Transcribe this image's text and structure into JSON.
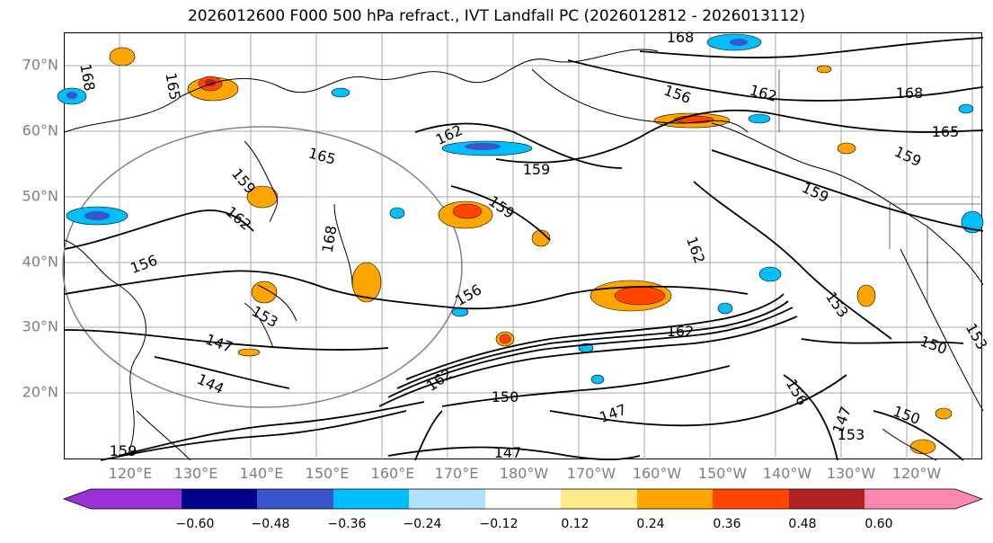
{
  "title": "2026012600 F000 500 hPa refract., IVT Landfall PC (2026012812 - 2026013112)",
  "lat_labels": [
    "70°N",
    "60°N",
    "50°N",
    "40°N",
    "30°N",
    "20°N"
  ],
  "lon_labels": [
    "120°E",
    "130°E",
    "140°E",
    "150°E",
    "160°E",
    "170°E",
    "180°W",
    "170°W",
    "160°W",
    "150°W",
    "140°W",
    "130°W",
    "120°W"
  ],
  "contour_labels": [
    "168",
    "168",
    "165",
    "156",
    "162",
    "168",
    "165",
    "162",
    "165",
    "159",
    "159",
    "159",
    "168",
    "162",
    "156",
    "162",
    "162",
    "159",
    "159",
    "156",
    "153",
    "153",
    "147",
    "144",
    "150",
    "162",
    "150",
    "156",
    "147",
    "147",
    "153",
    "150",
    "153",
    "159",
    "147"
  ],
  "colorbar": {
    "ticks": [
      "−0.60",
      "−0.48",
      "−0.36",
      "−0.24",
      "−0.12",
      "0.12",
      "0.24",
      "0.36",
      "0.48",
      "0.60"
    ],
    "colors": [
      "#9b30d9",
      "#00008b",
      "#3a55c9",
      "#00bfff",
      "#b0e2ff",
      "#ffffff",
      "#ffe98a",
      "#ffa500",
      "#ff4500",
      "#b22222",
      "#ff88b0"
    ],
    "extend": "both"
  },
  "map_colors": {
    "coast": "#000000",
    "contour": "#000000",
    "grid": "#999999",
    "circle": "#808080"
  }
}
